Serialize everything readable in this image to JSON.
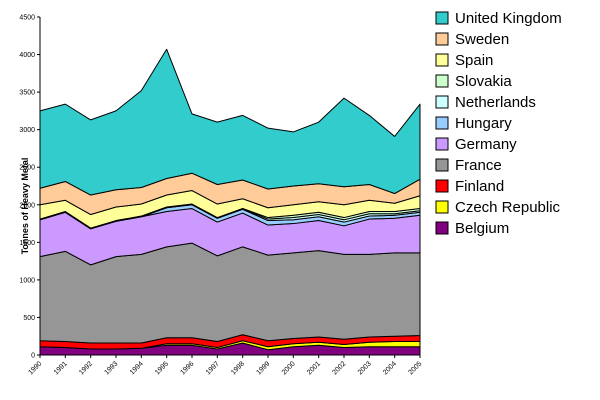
{
  "chart_data": {
    "type": "area",
    "stacked": true,
    "title": "",
    "xlabel": "",
    "ylabel": "Tonnes of Heavy Metal",
    "ylim": [
      0,
      4500
    ],
    "yticks": [
      "0",
      "500",
      "1000",
      "1500",
      "2000",
      "2500",
      "3000",
      "3500",
      "4000",
      "4500"
    ],
    "grid": false,
    "legend_position": "right",
    "x": [
      "1990",
      "1991",
      "1992",
      "1993",
      "1994",
      "1995",
      "1996",
      "1997",
      "1998",
      "1999",
      "2000",
      "2001",
      "2002",
      "2003",
      "2004",
      "2005"
    ],
    "series": [
      {
        "name": "Belgium",
        "color": "#800080",
        "values": [
          110,
          100,
          80,
          80,
          90,
          130,
          130,
          80,
          160,
          70,
          110,
          130,
          100,
          110,
          110,
          110
        ]
      },
      {
        "name": "Czech Republic",
        "color": "#ffff00",
        "values": [
          0,
          0,
          0,
          0,
          0,
          20,
          20,
          20,
          30,
          40,
          40,
          40,
          40,
          60,
          70,
          70
        ]
      },
      {
        "name": "Finland",
        "color": "#ff0000",
        "values": [
          80,
          80,
          80,
          80,
          70,
          80,
          80,
          80,
          80,
          80,
          70,
          70,
          70,
          70,
          70,
          80
        ]
      },
      {
        "name": "France",
        "color": "#969696",
        "values": [
          1120,
          1200,
          1040,
          1150,
          1180,
          1210,
          1260,
          1140,
          1170,
          1140,
          1140,
          1150,
          1130,
          1100,
          1110,
          1100
        ]
      },
      {
        "name": "Germany",
        "color": "#cc99ff",
        "values": [
          490,
          520,
          480,
          470,
          500,
          470,
          460,
          450,
          450,
          400,
          390,
          400,
          380,
          470,
          460,
          500
        ]
      },
      {
        "name": "Hungary",
        "color": "#99ccff",
        "values": [
          0,
          0,
          0,
          0,
          0,
          50,
          50,
          50,
          50,
          60,
          50,
          50,
          50,
          40,
          40,
          40
        ]
      },
      {
        "name": "Netherlands",
        "color": "#ccffff",
        "values": [
          10,
          10,
          10,
          10,
          10,
          10,
          10,
          10,
          10,
          20,
          30,
          30,
          30,
          30,
          20,
          20
        ]
      },
      {
        "name": "Slovakia",
        "color": "#ccffcc",
        "values": [
          0,
          0,
          0,
          0,
          0,
          0,
          0,
          0,
          0,
          20,
          30,
          30,
          30,
          30,
          30,
          30
        ]
      },
      {
        "name": "Spain",
        "color": "#ffff99",
        "values": [
          190,
          150,
          180,
          180,
          160,
          160,
          180,
          180,
          130,
          130,
          140,
          140,
          170,
          150,
          110,
          170
        ]
      },
      {
        "name": "Sweden",
        "color": "#ffcc99",
        "values": [
          220,
          250,
          260,
          230,
          220,
          220,
          230,
          260,
          250,
          250,
          250,
          240,
          240,
          210,
          130,
          220
        ]
      },
      {
        "name": "United Kingdom",
        "color": "#33cccc",
        "values": [
          1030,
          1030,
          1000,
          1050,
          1290,
          1720,
          790,
          830,
          860,
          810,
          720,
          820,
          1180,
          920,
          760,
          1000
        ]
      }
    ]
  },
  "legend": {
    "order": [
      "United Kingdom",
      "Sweden",
      "Spain",
      "Slovakia",
      "Netherlands",
      "Hungary",
      "Germany",
      "France",
      "Finland",
      "Czech Republic",
      "Belgium"
    ]
  }
}
